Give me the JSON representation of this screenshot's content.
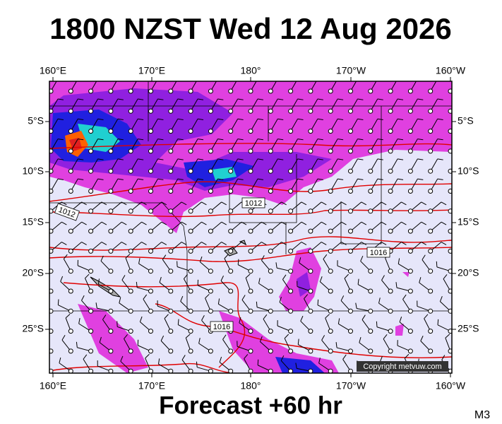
{
  "header": {
    "title": "1800 NZST Wed 12 Aug 2026"
  },
  "map": {
    "lon_labels": [
      "160°E",
      "170°E",
      "180°",
      "170°W",
      "160°W"
    ],
    "lat_labels": [
      "5°S",
      "10°S",
      "15°S",
      "20°S",
      "25°S"
    ],
    "isobar_labels": [
      "1012",
      "1012",
      "1016",
      "1016"
    ],
    "copyright": "Copyright metvuw.com"
  },
  "footer": {
    "forecast": "Forecast +60 hr",
    "code": "M3"
  }
}
